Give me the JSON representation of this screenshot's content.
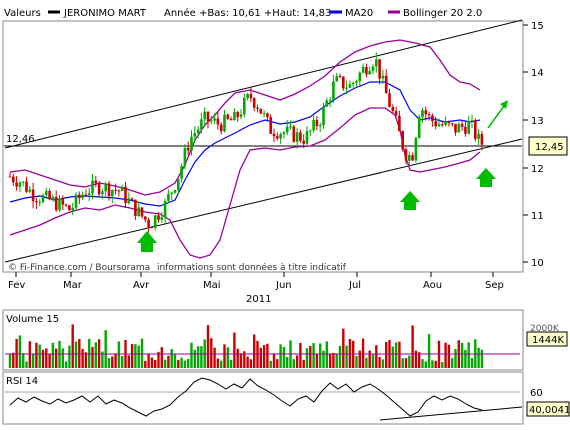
{
  "legend": {
    "label": "Valeurs",
    "stock_name": "JERONIMO MART",
    "range_text": "Année +Bas: 10,61 +Haut: 14,83",
    "ma_label": "MA20",
    "boll_label": "Bollinger 20 2.0"
  },
  "colors": {
    "up": "#00aa00",
    "down": "#cc0000",
    "ma": "#0000ff",
    "bollinger": "#990099",
    "channel": "#000000",
    "arrow": "#00bb00",
    "rsi": "#000000"
  },
  "watermark": "© Fi-Finance.com / Boursorama",
  "disclaimer": "informations sont données à titre indicatif",
  "year_label": "2011",
  "months": [
    "Fev",
    "Mar",
    "Avr",
    "Mai",
    "Jun",
    "Jul",
    "Aou",
    "Sep"
  ],
  "price_axis_ticks": [
    "15",
    "14",
    "13",
    "12",
    "11",
    "10"
  ],
  "left_value_label": "12,46",
  "last_price_tag": "12,45",
  "volume_panel": {
    "title": "Volume 15",
    "top_label": "2000K",
    "value_tag": "1444K"
  },
  "rsi_panel": {
    "title": "RSI 14",
    "tick_label": "60",
    "value_tag": "40,0041"
  },
  "chart_data": {
    "type": "candlestick",
    "title": "JERONIMO MART",
    "x_range": [
      "Feb 2011",
      "Sep 2011"
    ],
    "y_range": [
      10,
      15.2
    ],
    "price_series_approx": [
      {
        "month": "Fev",
        "close": 11.9
      },
      {
        "month": "Mar",
        "close": 11.2
      },
      {
        "month": "Avr",
        "close": 10.9
      },
      {
        "month": "Mai",
        "close": 12.9
      },
      {
        "month": "Jun",
        "close": 12.7
      },
      {
        "month": "Jul",
        "close": 14.2
      },
      {
        "month": "Aou",
        "close": 12.6
      },
      {
        "month": "Sep",
        "close": 12.45
      }
    ],
    "year_low": 10.61,
    "year_high": 14.83,
    "last_close": 12.45,
    "horizontal_line": 12.46,
    "overlays": [
      "MA20",
      "Bollinger 20 2.0",
      "trend channel"
    ],
    "volume_last": "1444K",
    "volume_axis_max": "2000K",
    "rsi_last": 40.0041,
    "rsi_tick": 60,
    "grid": false,
    "legend_position": "top"
  }
}
